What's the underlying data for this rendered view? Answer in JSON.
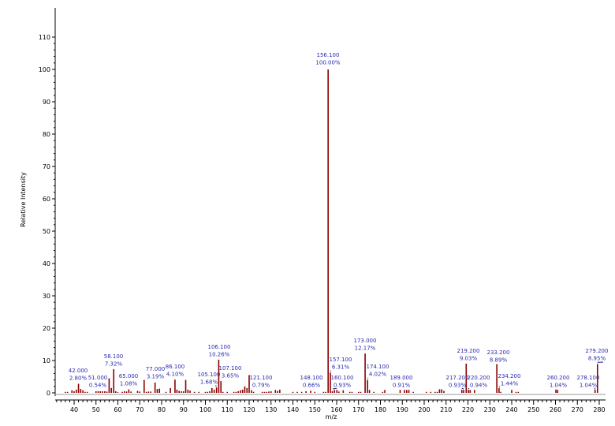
{
  "chart_data": {
    "type": "bar",
    "title": "",
    "xlabel": "m/z",
    "ylabel": "Relative Intensity",
    "xlim": [
      31.4,
      280.5
    ],
    "ylim": [
      0,
      115
    ],
    "xticks": [
      40,
      50,
      60,
      70,
      80,
      90,
      100,
      110,
      120,
      130,
      140,
      150,
      160,
      170,
      180,
      190,
      200,
      210,
      220,
      230,
      240,
      250,
      260,
      270,
      280
    ],
    "yticks": [
      0,
      10,
      20,
      30,
      40,
      50,
      60,
      70,
      80,
      90,
      100,
      110
    ],
    "color": "#8b0000",
    "labeled_peaks": [
      {
        "mz": 42.0,
        "intensity": 2.8,
        "mz_label": "42.000",
        "pct_label": "2.80%"
      },
      {
        "mz": 51.0,
        "intensity": 0.54,
        "mz_label": "51.000",
        "pct_label": "0.54%"
      },
      {
        "mz": 58.1,
        "intensity": 7.32,
        "mz_label": "58.100",
        "pct_label": "7.32%"
      },
      {
        "mz": 65.0,
        "intensity": 1.08,
        "mz_label": "65.000",
        "pct_label": "1.08%"
      },
      {
        "mz": 77.0,
        "intensity": 3.19,
        "mz_label": "77.000",
        "pct_label": "3.19%"
      },
      {
        "mz": 86.1,
        "intensity": 4.1,
        "mz_label": "86.100",
        "pct_label": "4.10%"
      },
      {
        "mz": 105.1,
        "intensity": 1.68,
        "mz_label": "105.100",
        "pct_label": "1.68%"
      },
      {
        "mz": 106.1,
        "intensity": 10.26,
        "mz_label": "106.100",
        "pct_label": "10.26%"
      },
      {
        "mz": 107.1,
        "intensity": 3.65,
        "mz_label": "107.100",
        "pct_label": "3.65%"
      },
      {
        "mz": 121.1,
        "intensity": 0.79,
        "mz_label": "121.100",
        "pct_label": "0.79%"
      },
      {
        "mz": 148.1,
        "intensity": 0.66,
        "mz_label": "148.100",
        "pct_label": "0.66%"
      },
      {
        "mz": 156.1,
        "intensity": 100.0,
        "mz_label": "156.100",
        "pct_label": "100.00%"
      },
      {
        "mz": 157.1,
        "intensity": 6.31,
        "mz_label": "157.100",
        "pct_label": "6.31%"
      },
      {
        "mz": 160.1,
        "intensity": 0.93,
        "mz_label": "160.100",
        "pct_label": "0.93%"
      },
      {
        "mz": 173.0,
        "intensity": 12.17,
        "mz_label": "173.000",
        "pct_label": "12.17%"
      },
      {
        "mz": 174.1,
        "intensity": 4.02,
        "mz_label": "174.100",
        "pct_label": "4.02%"
      },
      {
        "mz": 189.0,
        "intensity": 0.91,
        "mz_label": "189.000",
        "pct_label": "0.91%"
      },
      {
        "mz": 217.2,
        "intensity": 0.93,
        "mz_label": "217.200",
        "pct_label": "0.93%"
      },
      {
        "mz": 219.2,
        "intensity": 9.03,
        "mz_label": "219.200",
        "pct_label": "9.03%"
      },
      {
        "mz": 220.2,
        "intensity": 0.94,
        "mz_label": "220.200",
        "pct_label": "0.94%"
      },
      {
        "mz": 233.2,
        "intensity": 8.89,
        "mz_label": "233.200",
        "pct_label": "8.89%"
      },
      {
        "mz": 234.2,
        "intensity": 1.44,
        "mz_label": "234.200",
        "pct_label": "1.44%"
      },
      {
        "mz": 260.2,
        "intensity": 1.04,
        "mz_label": "260.200",
        "pct_label": "1.04%"
      },
      {
        "mz": 278.1,
        "intensity": 1.04,
        "mz_label": "278.100",
        "pct_label": "1.04%"
      },
      {
        "mz": 279.2,
        "intensity": 8.95,
        "mz_label": "279.200",
        "pct_label": "8.95%"
      }
    ],
    "minor_peaks": [
      [
        36,
        0.3
      ],
      [
        37,
        0.3
      ],
      [
        39,
        0.8
      ],
      [
        40,
        0.5
      ],
      [
        41,
        1.0
      ],
      [
        43,
        1.2
      ],
      [
        44,
        0.8
      ],
      [
        45,
        0.3
      ],
      [
        46,
        0.3
      ],
      [
        50,
        0.5
      ],
      [
        52,
        0.5
      ],
      [
        53,
        0.5
      ],
      [
        54,
        0.5
      ],
      [
        55,
        0.4
      ],
      [
        56,
        4.5
      ],
      [
        57,
        1.5
      ],
      [
        59,
        0.5
      ],
      [
        60,
        0.2
      ],
      [
        62,
        0.3
      ],
      [
        63,
        0.5
      ],
      [
        64,
        0.4
      ],
      [
        66,
        0.4
      ],
      [
        69,
        0.6
      ],
      [
        70,
        0.4
      ],
      [
        72,
        4.0
      ],
      [
        73,
        0.3
      ],
      [
        74,
        0.4
      ],
      [
        75,
        0.4
      ],
      [
        78,
        1.2
      ],
      [
        79,
        1.3
      ],
      [
        82,
        0.3
      ],
      [
        84,
        1.5
      ],
      [
        87,
        1.0
      ],
      [
        88,
        0.6
      ],
      [
        89,
        0.5
      ],
      [
        90,
        0.5
      ],
      [
        91,
        4.0
      ],
      [
        92,
        1.0
      ],
      [
        93,
        0.7
      ],
      [
        95,
        0.3
      ],
      [
        97,
        0.3
      ],
      [
        100,
        0.3
      ],
      [
        101,
        0.3
      ],
      [
        102,
        0.5
      ],
      [
        103,
        1.5
      ],
      [
        104,
        1.0
      ],
      [
        108,
        0.3
      ],
      [
        110,
        0.3
      ],
      [
        113,
        0.3
      ],
      [
        114,
        0.3
      ],
      [
        115,
        0.5
      ],
      [
        116,
        0.8
      ],
      [
        117,
        1.0
      ],
      [
        118,
        2.0
      ],
      [
        119,
        1.5
      ],
      [
        120,
        5.5
      ],
      [
        122,
        0.3
      ],
      [
        126,
        0.3
      ],
      [
        127,
        0.3
      ],
      [
        128,
        0.3
      ],
      [
        129,
        0.4
      ],
      [
        130,
        0.5
      ],
      [
        132,
        0.9
      ],
      [
        133,
        0.6
      ],
      [
        134,
        1.0
      ],
      [
        140,
        0.3
      ],
      [
        142,
        0.3
      ],
      [
        144,
        0.3
      ],
      [
        146,
        0.5
      ],
      [
        150,
        0.3
      ],
      [
        154,
        0.3
      ],
      [
        155,
        0.3
      ],
      [
        158,
        0.5
      ],
      [
        159,
        0.9
      ],
      [
        161,
        0.4
      ],
      [
        163,
        0.8
      ],
      [
        166,
        0.3
      ],
      [
        167,
        0.3
      ],
      [
        170,
        0.3
      ],
      [
        171,
        0.3
      ],
      [
        175,
        0.9
      ],
      [
        177,
        0.3
      ],
      [
        181,
        0.3
      ],
      [
        182,
        0.9
      ],
      [
        191,
        0.9
      ],
      [
        192,
        0.9
      ],
      [
        193,
        0.9
      ],
      [
        195,
        0.3
      ],
      [
        201,
        0.3
      ],
      [
        203,
        0.3
      ],
      [
        205,
        0.3
      ],
      [
        206,
        0.3
      ],
      [
        207,
        1.1
      ],
      [
        208,
        1.1
      ],
      [
        209,
        0.6
      ],
      [
        218,
        0.9
      ],
      [
        221,
        0.9
      ],
      [
        223,
        0.9
      ],
      [
        235,
        0.3
      ],
      [
        240,
        0.9
      ],
      [
        242,
        0.3
      ],
      [
        243,
        0.3
      ],
      [
        261,
        0.9
      ]
    ]
  }
}
